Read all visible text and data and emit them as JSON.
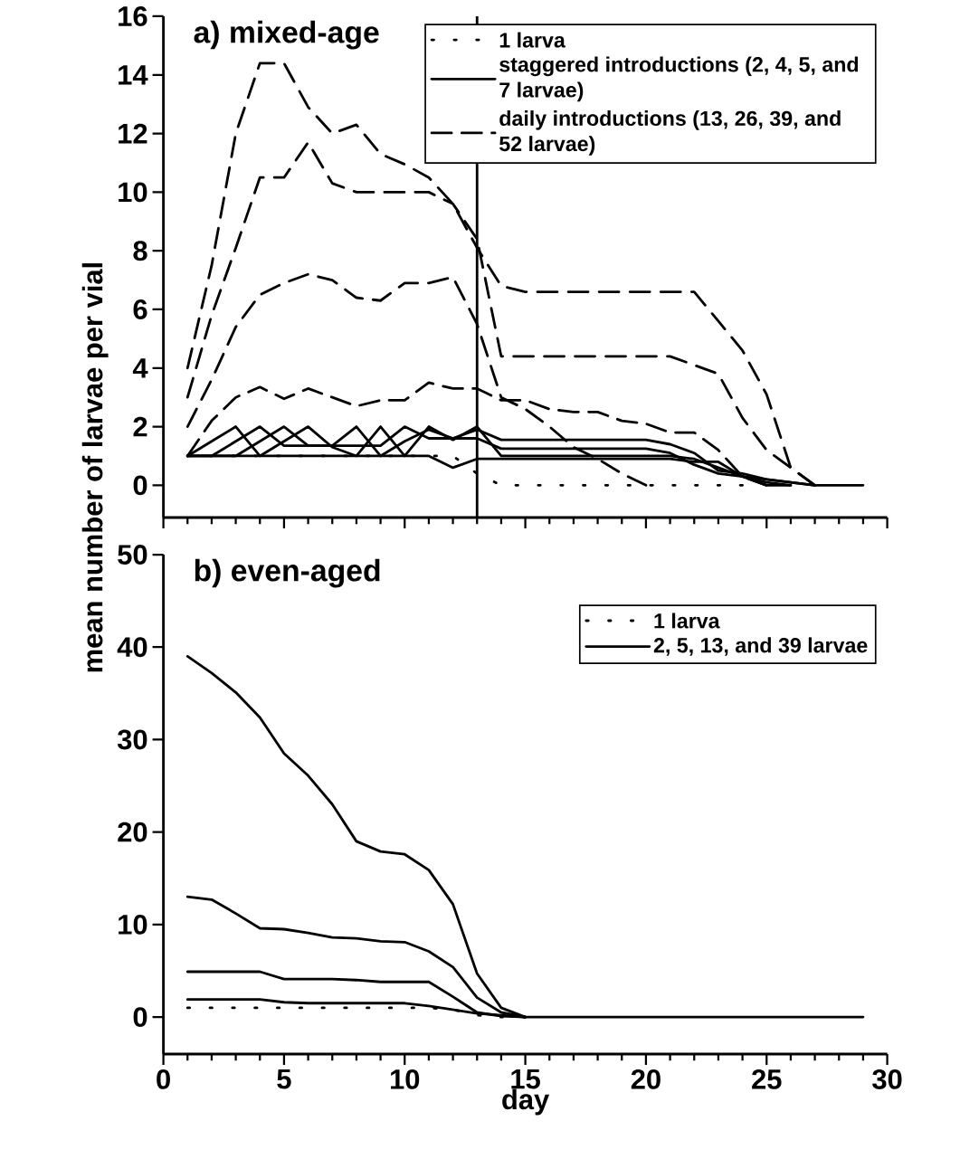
{
  "chart_data": [
    {
      "type": "line",
      "title": "a) mixed-age",
      "ylabel": "mean number of larvae per vial",
      "xlim": [
        0,
        30
      ],
      "ylim": [
        -1.1,
        16
      ],
      "xticks": [
        0,
        5,
        10,
        15,
        20,
        25,
        30
      ],
      "yticks": [
        0,
        2,
        4,
        6,
        8,
        10,
        12,
        14,
        16
      ],
      "tick_labels": "y",
      "legend": "top right",
      "ref_lines": [
        {
          "axis": "x",
          "value": 13,
          "color": "#000000"
        }
      ],
      "series": [
        {
          "name": "1 larva",
          "line_style": "dotted",
          "color": "#000000",
          "x": [
            1,
            2,
            3,
            4,
            5,
            6,
            7,
            8,
            9,
            10,
            11,
            12,
            13,
            14,
            15,
            16,
            17,
            18,
            19,
            20,
            21,
            22,
            23,
            24
          ],
          "values": [
            1,
            1,
            1,
            1,
            1,
            1,
            1,
            1,
            1,
            1,
            1,
            1,
            0.4,
            0,
            0,
            0,
            0,
            0,
            0,
            0,
            0,
            0,
            0,
            0
          ]
        },
        {
          "name": "staggered introductions (2, 4, 5, and 7 larvae)",
          "line_style": "solid",
          "color": "#000000",
          "x": [
            1,
            2,
            3,
            4,
            5,
            6,
            7,
            8,
            9,
            10,
            11,
            12,
            13,
            14,
            15,
            16,
            17,
            18,
            19,
            20,
            21,
            22,
            23,
            24,
            25,
            26
          ],
          "values": [
            1,
            1.5,
            2,
            1,
            1,
            1,
            1,
            1,
            1,
            1,
            1,
            0.6,
            0.9,
            0.9,
            0.9,
            0.9,
            0.9,
            0.9,
            0.9,
            0.9,
            0.9,
            0.8,
            0.8,
            0.3,
            0,
            0
          ]
        },
        {
          "line_style": "solid",
          "color": "#000000",
          "x": [
            1,
            2,
            3,
            4,
            5,
            6,
            7,
            8,
            9,
            10,
            11,
            12,
            13,
            14,
            15,
            16,
            17,
            18,
            19,
            20,
            21,
            22,
            23,
            24,
            25,
            26
          ],
          "values": [
            1,
            1,
            1.5,
            2,
            1.35,
            1.35,
            1.35,
            1.35,
            1.35,
            2,
            1.6,
            1.6,
            1.6,
            1.25,
            1.25,
            1.25,
            1.25,
            1.25,
            1.25,
            1.25,
            1.1,
            0.7,
            0.4,
            0.3,
            0.1,
            0
          ]
        },
        {
          "line_style": "solid",
          "color": "#000000",
          "x": [
            1,
            2,
            3,
            4,
            5,
            6,
            7,
            8,
            9,
            10,
            11,
            12,
            13,
            14,
            15,
            16,
            17,
            18,
            19,
            20,
            21,
            22,
            23,
            24,
            25,
            26,
            27
          ],
          "values": [
            1,
            1,
            1,
            1.5,
            2,
            1.35,
            1.35,
            2,
            1,
            1.5,
            1.9,
            1.6,
            1.9,
            1.55,
            1.55,
            1.55,
            1.55,
            1.55,
            1.55,
            1.55,
            1.4,
            1.1,
            0.5,
            0.4,
            0.2,
            0.1,
            0
          ]
        },
        {
          "line_style": "solid",
          "color": "#000000",
          "x": [
            1,
            2,
            3,
            4,
            5,
            6,
            7,
            8,
            9,
            10,
            11,
            12,
            13,
            14,
            15,
            16,
            17,
            18,
            19,
            20,
            21,
            22,
            23,
            24,
            25,
            26,
            27,
            28,
            29
          ],
          "values": [
            1,
            1,
            1,
            1,
            1.5,
            2,
            1.3,
            1,
            2,
            1,
            2,
            1.55,
            2,
            1,
            1,
            1,
            1,
            1,
            1,
            1,
            1,
            0.9,
            0.6,
            0.3,
            0.2,
            0.1,
            0,
            0,
            0
          ]
        },
        {
          "name": "daily introductions (13, 26, 39, and 52 larvae)",
          "line_style": "dashed",
          "color": "#000000",
          "x": [
            1,
            2,
            3,
            4,
            5,
            6,
            7,
            8,
            9,
            10,
            11,
            12,
            13,
            14,
            15,
            16,
            17,
            18,
            19,
            20,
            21,
            22,
            23,
            24,
            25
          ],
          "values": [
            1,
            2.2,
            3,
            3.35,
            2.95,
            3.3,
            3,
            2.7,
            2.9,
            2.9,
            3.5,
            3.3,
            3.3,
            2.9,
            2.9,
            2.6,
            2.5,
            2.5,
            2.2,
            2.1,
            1.8,
            1.8,
            1.2,
            0.3,
            0
          ]
        },
        {
          "line_style": "dashed",
          "color": "#000000",
          "x": [
            1,
            2,
            3,
            4,
            5,
            6,
            7,
            8,
            9,
            10,
            11,
            12,
            13,
            14,
            15,
            16,
            17,
            18,
            19,
            20
          ],
          "values": [
            2,
            3.6,
            5.4,
            6.5,
            6.9,
            7.2,
            7,
            6.4,
            6.3,
            6.9,
            6.9,
            7.1,
            5.5,
            3,
            2.6,
            2,
            1.3,
            0.9,
            0.4,
            0
          ]
        },
        {
          "line_style": "dashed",
          "color": "#000000",
          "x": [
            1,
            2,
            3,
            4,
            5,
            6,
            7,
            8,
            9,
            10,
            11,
            12,
            13,
            14,
            15,
            16,
            17,
            18,
            19,
            20,
            21,
            22,
            23,
            24,
            25,
            26,
            27
          ],
          "values": [
            3,
            5.8,
            8.1,
            10.5,
            10.5,
            11.7,
            10.3,
            10,
            10,
            10,
            10,
            9.6,
            8.4,
            4.4,
            4.4,
            4.4,
            4.4,
            4.4,
            4.4,
            4.4,
            4.4,
            4.1,
            3.8,
            2.3,
            1.2,
            0.6,
            0
          ]
        },
        {
          "line_style": "dashed",
          "color": "#000000",
          "x": [
            1,
            2,
            3,
            4,
            5,
            6,
            7,
            8,
            9,
            10,
            11,
            12,
            13,
            14,
            15,
            16,
            17,
            18,
            19,
            20,
            21,
            22,
            23,
            24,
            25,
            26,
            27
          ],
          "values": [
            4,
            7.5,
            12,
            14.4,
            14.4,
            12.9,
            12,
            12.3,
            11.3,
            10.95,
            10.5,
            9.6,
            8.1,
            6.8,
            6.6,
            6.6,
            6.6,
            6.6,
            6.6,
            6.6,
            6.6,
            6.6,
            5.6,
            4.6,
            3.1,
            0.6,
            0
          ]
        }
      ]
    },
    {
      "type": "line",
      "title": "b) even-aged",
      "xlabel": "day",
      "xlim": [
        0,
        30
      ],
      "ylim": [
        -4,
        50
      ],
      "xticks": [
        0,
        5,
        10,
        15,
        20,
        25,
        30
      ],
      "yticks": [
        0,
        10,
        20,
        30,
        40,
        50
      ],
      "legend": "top right",
      "series": [
        {
          "name": "1 larva",
          "line_style": "dotted",
          "color": "#000000",
          "x": [
            1,
            2,
            3,
            4,
            5,
            6,
            7,
            8,
            9,
            10,
            11,
            12,
            13,
            14,
            15
          ],
          "values": [
            1,
            1,
            1,
            1,
            1,
            1,
            1,
            1,
            1,
            1,
            1,
            0.8,
            0.2,
            0,
            0
          ]
        },
        {
          "name": "2, 5, 13, and 39 larvae",
          "line_style": "solid",
          "color": "#000000",
          "x": [
            1,
            2,
            3,
            4,
            5,
            6,
            7,
            8,
            9,
            10,
            11,
            12,
            13,
            14,
            15
          ],
          "values": [
            1.9,
            1.9,
            1.9,
            1.9,
            1.6,
            1.5,
            1.5,
            1.5,
            1.5,
            1.5,
            1.2,
            0.8,
            0.4,
            0.2,
            0
          ]
        },
        {
          "line_style": "solid",
          "color": "#000000",
          "x": [
            1,
            2,
            3,
            4,
            5,
            6,
            7,
            8,
            9,
            10,
            11,
            12,
            13,
            14,
            15
          ],
          "values": [
            4.9,
            4.9,
            4.9,
            4.9,
            4.1,
            4.1,
            4.1,
            4,
            3.8,
            3.8,
            3.8,
            2.2,
            0.5,
            0.1,
            0
          ]
        },
        {
          "line_style": "solid",
          "color": "#000000",
          "x": [
            1,
            2,
            3,
            4,
            5,
            6,
            7,
            8,
            9,
            10,
            11,
            12,
            13,
            14,
            15
          ],
          "values": [
            13,
            12.7,
            11.2,
            9.6,
            9.5,
            9.1,
            8.6,
            8.5,
            8.2,
            8.1,
            7.1,
            5.4,
            2.1,
            0.5,
            0
          ]
        },
        {
          "line_style": "solid",
          "color": "#000000",
          "x": [
            1,
            2,
            3,
            4,
            5,
            6,
            7,
            8,
            9,
            10,
            11,
            12,
            13,
            14,
            15,
            16,
            17,
            18,
            19,
            20,
            21,
            22,
            23,
            24,
            25,
            26,
            27,
            28,
            29
          ],
          "values": [
            39,
            37.2,
            35.1,
            32.4,
            28.5,
            26.1,
            23,
            19,
            17.9,
            17.6,
            15.9,
            12.2,
            4.7,
            1,
            0,
            0,
            0,
            0,
            0,
            0,
            0,
            0,
            0,
            0,
            0,
            0,
            0,
            0,
            0
          ]
        }
      ]
    }
  ]
}
